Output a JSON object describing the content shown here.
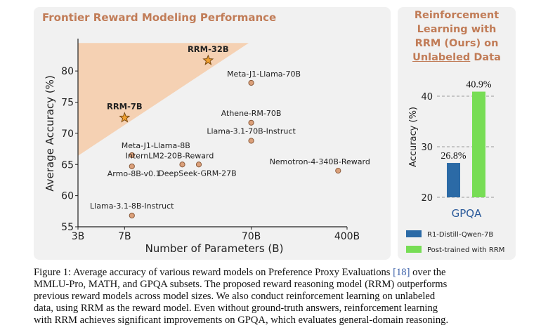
{
  "left_panel": {
    "title": "Frontier Reward Modeling Performance"
  },
  "right_panel": {
    "title_lines": [
      "Reinforcement",
      "Learning with",
      "RRM (Ours) on"
    ],
    "title_underlined": "Unlabeled",
    "title_tail": "Data"
  },
  "chart_data": [
    {
      "type": "scatter",
      "title": "",
      "xlabel": "Number of Parameters (B)",
      "ylabel": "Average Accuracy (%)",
      "x_scale": "log",
      "x_ticks": [
        3,
        7,
        70,
        400
      ],
      "x_tick_labels": [
        "3B",
        "7B",
        "70B",
        "400B"
      ],
      "y_ticks": [
        55,
        60,
        65,
        70,
        75,
        80
      ],
      "ylim": [
        55,
        84
      ],
      "grid": false,
      "shaded_region": {
        "color": "#f6cba8",
        "label": ""
      },
      "points": [
        {
          "label": "RRM-32B",
          "x": 32,
          "y": 81.7,
          "highlight": true
        },
        {
          "label": "RRM-7B",
          "x": 7,
          "y": 72.5,
          "highlight": true
        },
        {
          "label": "Meta-J1-Llama-70B",
          "x": 70,
          "y": 78.1,
          "highlight": false
        },
        {
          "label": "Athene-RM-70B",
          "x": 70,
          "y": 71.7,
          "highlight": false
        },
        {
          "label": "Llama-3.1-70B-Instruct",
          "x": 70,
          "y": 68.8,
          "highlight": false
        },
        {
          "label": "Meta-J1-Llama-8B",
          "x": 8,
          "y": 66.5,
          "highlight": false
        },
        {
          "label": "InternLM2-20B-Reward",
          "x": 20,
          "y": 65.0,
          "highlight": false
        },
        {
          "label": "DeepSeek-GRM-27B",
          "x": 27,
          "y": 65.0,
          "highlight": false
        },
        {
          "label": "Armo-8B-v0.1",
          "x": 8,
          "y": 64.7,
          "highlight": false
        },
        {
          "label": "Nemotron-4-340B-Reward",
          "x": 340,
          "y": 64.0,
          "highlight": false
        },
        {
          "label": "Llama-3.1-8B-Instruct",
          "x": 8,
          "y": 56.8,
          "highlight": false
        }
      ]
    },
    {
      "type": "bar",
      "title": "",
      "ylabel": "Accuracy (%)",
      "categories": [
        "GPQA"
      ],
      "ylim": [
        20,
        43
      ],
      "y_ticks": [
        20,
        30,
        40
      ],
      "grid": true,
      "legend": "bottom",
      "series": [
        {
          "name": "R1-Distill-Qwen-7B",
          "values": [
            26.8
          ],
          "label": "26.8%",
          "color": "#2b6aa6"
        },
        {
          "name": "Post-trained with RRM",
          "values": [
            40.9
          ],
          "label": "40.9%",
          "color": "#77dd55"
        }
      ]
    }
  ],
  "caption": {
    "lines": [
      [
        "Figure 1: Average accuracy of various reward models on Preference Proxy Evaluations ",
        "[18]",
        " over the"
      ],
      [
        "MMLU-Pro, MATH, and GPQA subsets. The proposed reward reasoning model (RRM) outperforms",
        "",
        ""
      ],
      [
        "previous reward models across model sizes. We also conduct reinforcement learning on unlabeled",
        "",
        ""
      ],
      [
        "data, using RRM as the reward model. Even without ground-truth answers, reinforcement learning",
        "",
        ""
      ],
      [
        "with RRM achieves significant improvements on GPQA, which evaluates general-domain reasoning.",
        "",
        ""
      ]
    ]
  }
}
